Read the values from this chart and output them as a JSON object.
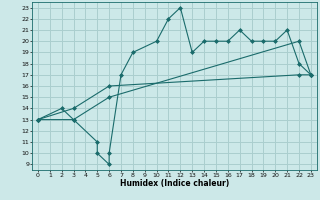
{
  "title": "",
  "xlabel": "Humidex (Indice chaleur)",
  "bg_color": "#cce8e8",
  "line_color": "#1a6b6b",
  "grid_color": "#aacece",
  "xlim": [
    -0.5,
    23.5
  ],
  "ylim": [
    8.5,
    23.5
  ],
  "xticks": [
    0,
    1,
    2,
    3,
    4,
    5,
    6,
    7,
    8,
    9,
    10,
    11,
    12,
    13,
    14,
    15,
    16,
    17,
    18,
    19,
    20,
    21,
    22,
    23
  ],
  "yticks": [
    9,
    10,
    11,
    12,
    13,
    14,
    15,
    16,
    17,
    18,
    19,
    20,
    21,
    22,
    23
  ],
  "line1_x": [
    0,
    2,
    3,
    5,
    5,
    6,
    6,
    7,
    8,
    10,
    11,
    12,
    13,
    14,
    15,
    16,
    17,
    18,
    19,
    20,
    21,
    22,
    23
  ],
  "line1_y": [
    13,
    14,
    13,
    11,
    10,
    9,
    10,
    17,
    19,
    20,
    22,
    23,
    19,
    20,
    20,
    20,
    21,
    20,
    20,
    20,
    21,
    18,
    17
  ],
  "line2_x": [
    0,
    3,
    6,
    22,
    23
  ],
  "line2_y": [
    13,
    13,
    15,
    20,
    17
  ],
  "line3_x": [
    0,
    3,
    6,
    22,
    23
  ],
  "line3_y": [
    13,
    14,
    16,
    17,
    17
  ]
}
